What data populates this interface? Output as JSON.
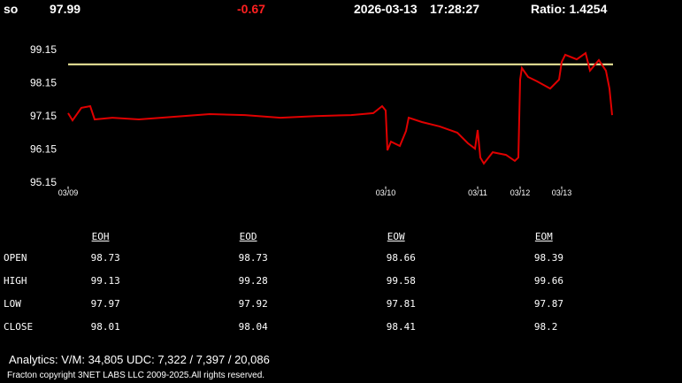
{
  "header": {
    "symbol": "so",
    "price": "97.99",
    "change": "-0.67",
    "date": "2026-03-13",
    "time": "17:28:27",
    "ratio": "Ratio: 1.4254"
  },
  "chart_data": {
    "type": "line",
    "color": "#e00000",
    "x": [
      0,
      5,
      15,
      25,
      30,
      50,
      80,
      120,
      160,
      200,
      240,
      280,
      320,
      345,
      355,
      359,
      361,
      365,
      375,
      382,
      385,
      400,
      420,
      440,
      452,
      460,
      463,
      466,
      470,
      480,
      495,
      505,
      509,
      511,
      513,
      520,
      530,
      545,
      555,
      558,
      562,
      575,
      585,
      590,
      600,
      608,
      612,
      615
    ],
    "values": [
      97.26,
      97.04,
      97.42,
      97.47,
      97.07,
      97.12,
      97.07,
      97.15,
      97.23,
      97.2,
      97.12,
      97.17,
      97.2,
      97.26,
      97.47,
      97.34,
      96.14,
      96.4,
      96.27,
      96.72,
      97.12,
      96.99,
      96.86,
      96.67,
      96.35,
      96.19,
      96.75,
      95.92,
      95.74,
      96.08,
      96.0,
      95.82,
      95.92,
      98.27,
      98.62,
      98.35,
      98.22,
      98.0,
      98.27,
      98.8,
      99.02,
      98.88,
      99.07,
      98.54,
      98.86,
      98.54,
      98.0,
      97.2
    ],
    "reference_line": {
      "value": 98.73,
      "color": "#f5f0a0"
    },
    "xlim": [
      0,
      616
    ],
    "ylim": [
      95.05,
      99.45
    ],
    "xticks": [
      {
        "value": 0,
        "label": "03/09"
      },
      {
        "value": 359,
        "label": "03/10"
      },
      {
        "value": 463,
        "label": "03/11"
      },
      {
        "value": 511,
        "label": "03/12"
      },
      {
        "value": 558,
        "label": "03/13"
      }
    ],
    "yticks": [
      95.15,
      96.15,
      97.15,
      98.15,
      99.15
    ]
  },
  "table": {
    "columns": [
      "EOH",
      "EOD",
      "EOW",
      "EOM"
    ],
    "rows": [
      [
        "OPEN",
        "98.73",
        "98.73",
        "98.66",
        "98.39"
      ],
      [
        "HIGH",
        "99.13",
        "99.28",
        "99.58",
        "99.66"
      ],
      [
        "LOW",
        "97.97",
        "97.92",
        "97.81",
        "97.87"
      ],
      [
        "CLOSE",
        "98.01",
        "98.04",
        "98.41",
        "98.2"
      ]
    ]
  },
  "footer": {
    "analytics": "Analytics:  V/M: 34,805   UDC:  7,322  / 7,397   / 20,086",
    "copyright": "Fracton copyright 3NET LABS LLC 2009-2025.All rights reserved."
  }
}
